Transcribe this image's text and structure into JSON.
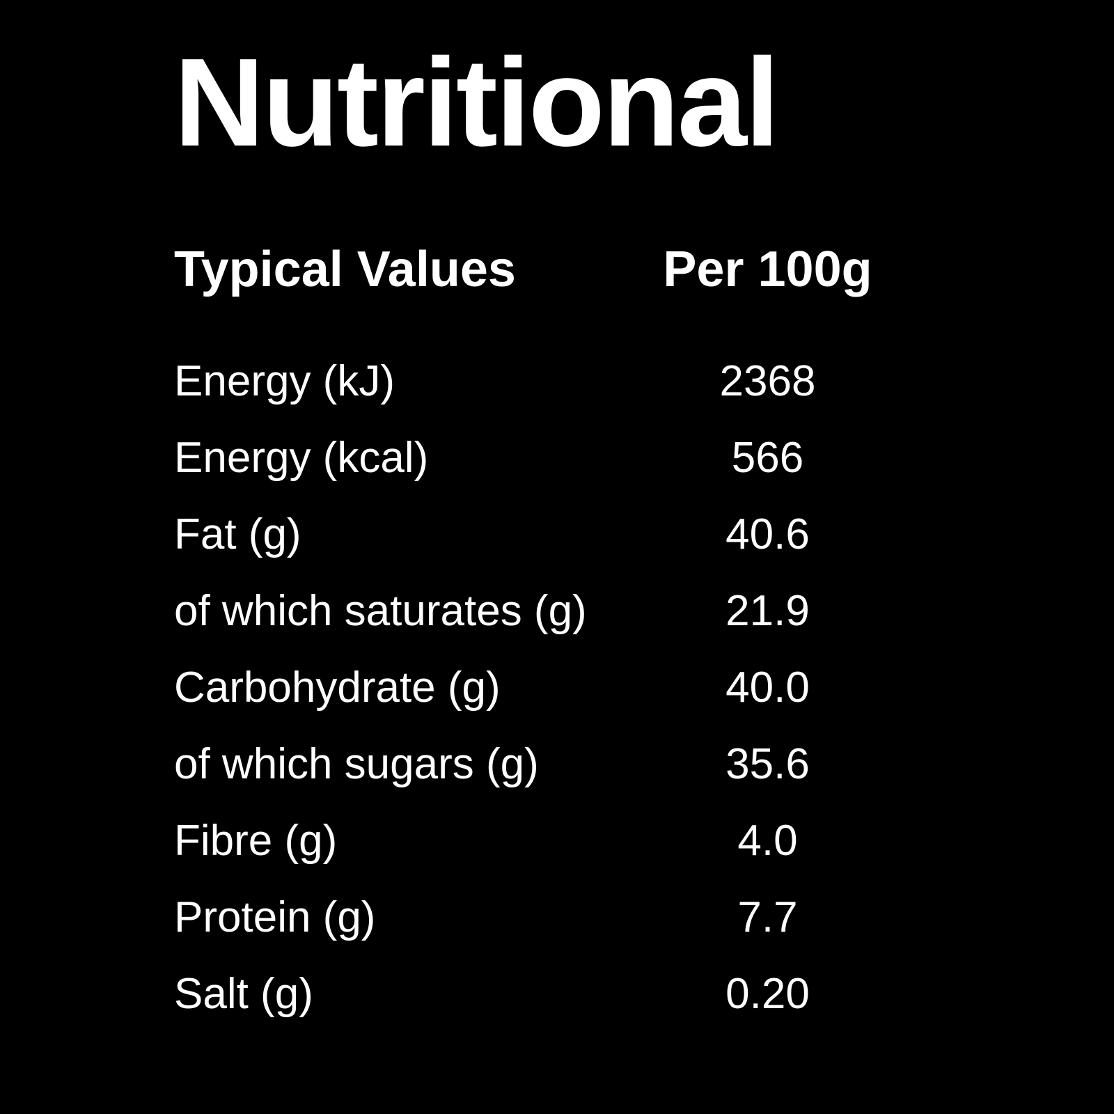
{
  "page": {
    "background_color": "#000000",
    "text_color": "#ffffff"
  },
  "title": "Nutritional",
  "table": {
    "columns": [
      "Typical Values",
      "Per 100g"
    ],
    "rows": [
      {
        "label": "Energy (kJ)",
        "value": "2368"
      },
      {
        "label": "Energy (kcal)",
        "value": "566"
      },
      {
        "label": "Fat (g)",
        "value": "40.6"
      },
      {
        "label": "of which saturates (g)",
        "value": "21.9"
      },
      {
        "label": "Carbohydrate (g)",
        "value": "40.0"
      },
      {
        "label": "of which sugars (g)",
        "value": "35.6"
      },
      {
        "label": "Fibre (g)",
        "value": "4.0"
      },
      {
        "label": "Protein (g)",
        "value": "7.7"
      },
      {
        "label": "Salt (g)",
        "value": "0.20"
      }
    ]
  }
}
